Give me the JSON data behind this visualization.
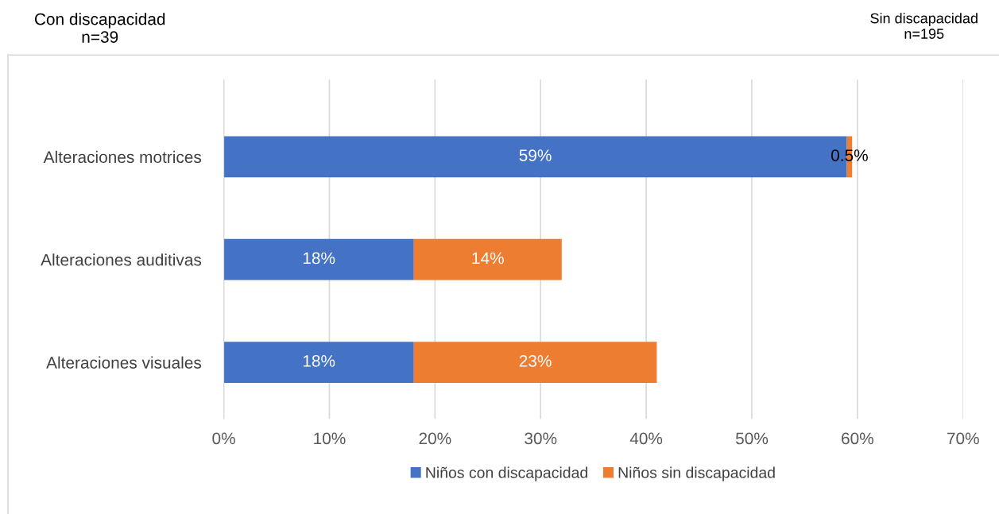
{
  "chart_data": {
    "type": "bar",
    "orientation": "horizontal",
    "stacked": true,
    "categories": [
      "Alteraciones motrices",
      "Alteraciones auditivas",
      "Alteraciones visuales"
    ],
    "series": [
      {
        "name": "Niños con discapacidad",
        "color": "#4472c4",
        "values": [
          59,
          18,
          18
        ],
        "value_labels": [
          "59%",
          "18%",
          "18%"
        ]
      },
      {
        "name": "Niños sin discapacidad",
        "color": "#ed7d31",
        "values": [
          0.5,
          14,
          23
        ],
        "value_labels": [
          "0.5%",
          "14%",
          "23%"
        ]
      }
    ],
    "xlim": [
      0,
      70
    ],
    "xticks": [
      {
        "value": 0,
        "label": "0%"
      },
      {
        "value": 10,
        "label": "10%"
      },
      {
        "value": 20,
        "label": "20%"
      },
      {
        "value": 30,
        "label": "30%"
      },
      {
        "value": 40,
        "label": "40%"
      },
      {
        "value": 50,
        "label": "50%"
      },
      {
        "value": 60,
        "label": "60%"
      },
      {
        "value": 70,
        "label": "70%"
      }
    ],
    "grid": "x",
    "legend": "bottom",
    "annotations": [
      "Con discapacidad\nn=39",
      "Sin discapacidad\nn=195"
    ]
  }
}
